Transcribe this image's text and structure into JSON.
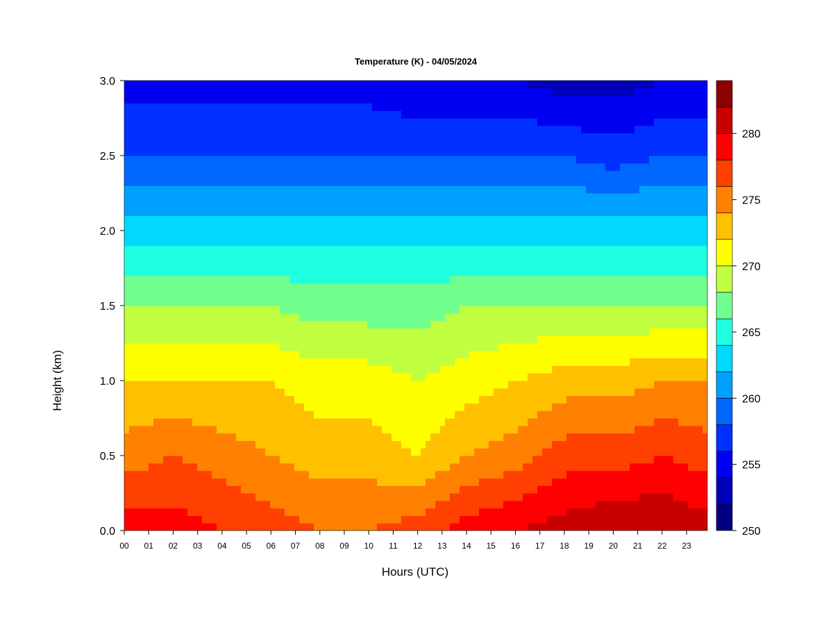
{
  "chart_data": {
    "type": "heatmap",
    "title": "Temperature (K) - 04/05/2024",
    "xlabel": "Hours (UTC)",
    "ylabel": "Height (km)",
    "x_ticks": [
      "00",
      "01",
      "02",
      "03",
      "04",
      "05",
      "06",
      "07",
      "08",
      "09",
      "10",
      "11",
      "12",
      "13",
      "14",
      "15",
      "16",
      "17",
      "18",
      "19",
      "20",
      "21",
      "22",
      "23"
    ],
    "x_range": [
      0,
      23.85
    ],
    "y_ticks": [
      "0.0",
      "0.5",
      "1.0",
      "1.5",
      "2.0",
      "2.5",
      "3.0"
    ],
    "y_range": [
      0.0,
      3.0
    ],
    "colorbar": {
      "ticks": [
        "250",
        "255",
        "260",
        "265",
        "270",
        "275",
        "280"
      ],
      "range": [
        250,
        284
      ],
      "levels": [
        250,
        252,
        254,
        256,
        258,
        260,
        262,
        264,
        266,
        268,
        270,
        272,
        274,
        276,
        278,
        280,
        282,
        284
      ],
      "colors": [
        "#000080",
        "#0000b8",
        "#0000f0",
        "#0030ff",
        "#0068ff",
        "#00a0ff",
        "#00d8ff",
        "#20ffdf",
        "#70ff8f",
        "#c0ff3f",
        "#ffff00",
        "#ffc000",
        "#ff8000",
        "#ff4000",
        "#ff0000",
        "#c80000",
        "#8b0000"
      ]
    },
    "profile_hours": [
      0,
      2,
      4,
      6,
      8,
      10,
      12,
      14,
      16,
      18,
      20,
      22,
      23.85
    ],
    "profile_heights_km": [
      0.0,
      0.5,
      1.0,
      1.5,
      2.0,
      2.5,
      3.0
    ],
    "temperature_K": [
      [
        279,
        275,
        272,
        268,
        263,
        258,
        255
      ],
      [
        279,
        276,
        272,
        268,
        263,
        258,
        255
      ],
      [
        278,
        275,
        272,
        268,
        263,
        258,
        255
      ],
      [
        277,
        274,
        272,
        268,
        263,
        258,
        255
      ],
      [
        276,
        273,
        271,
        267,
        263,
        258,
        255
      ],
      [
        276,
        273,
        271,
        267,
        263,
        258,
        255
      ],
      [
        277,
        272,
        270,
        267,
        263,
        258,
        254
      ],
      [
        279,
        274,
        271,
        268,
        263,
        258,
        254
      ],
      [
        280,
        275,
        272,
        268,
        263,
        258,
        254
      ],
      [
        281,
        277,
        273,
        268,
        263,
        258,
        253
      ],
      [
        282,
        277,
        273,
        268,
        263,
        257,
        253
      ],
      [
        282,
        278,
        274,
        268,
        263,
        258,
        254
      ],
      [
        281,
        277,
        274,
        268,
        263,
        258,
        254
      ]
    ],
    "grid": false,
    "legend": "right colorbar"
  }
}
